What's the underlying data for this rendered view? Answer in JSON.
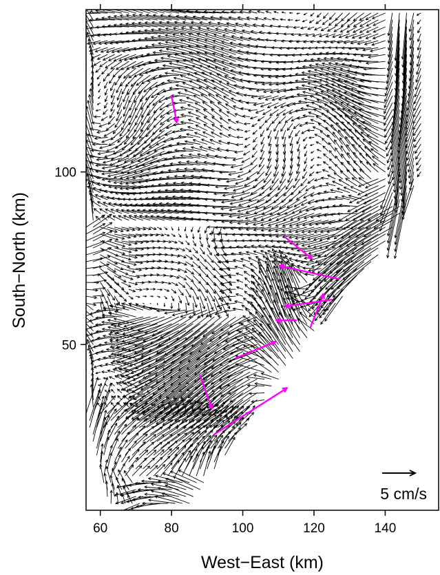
{
  "chart_data": {
    "type": "vector-field",
    "xlabel": "West−East (km)",
    "ylabel": "South−North (km)",
    "xlim": [
      56,
      155
    ],
    "ylim": [
      2,
      147
    ],
    "xticks": [
      60,
      80,
      100,
      120,
      140
    ],
    "yticks": [
      50,
      100
    ],
    "xtick_labels": [
      "60",
      "80",
      "100",
      "120",
      "140"
    ],
    "ytick_labels": [
      "50",
      "100"
    ],
    "scale_label": "5 cm/s",
    "reference_speed_cm_s": 5,
    "colors": {
      "field": "#000000",
      "highlight": "#ff00ff"
    },
    "grid_spacing_km": 2,
    "highlight_vectors": [
      {
        "x": 80,
        "y": 122,
        "u": 0.8,
        "v": -4.0
      },
      {
        "x": 112,
        "y": 81,
        "u": 4.0,
        "v": -3.2
      },
      {
        "x": 127,
        "y": 69,
        "u": -9.0,
        "v": 2.0
      },
      {
        "x": 125,
        "y": 63,
        "u": -7.0,
        "v": -1.0
      },
      {
        "x": 119,
        "y": 55,
        "u": 2.0,
        "v": 5.0
      },
      {
        "x": 115,
        "y": 57,
        "u": -3.0,
        "v": 0.0
      },
      {
        "x": 98,
        "y": 46,
        "u": 6.0,
        "v": 2.5
      },
      {
        "x": 88,
        "y": 41,
        "u": 1.8,
        "v": -5.0
      },
      {
        "x": 92,
        "y": 24,
        "u": 11.0,
        "v": 7.0
      }
    ]
  }
}
